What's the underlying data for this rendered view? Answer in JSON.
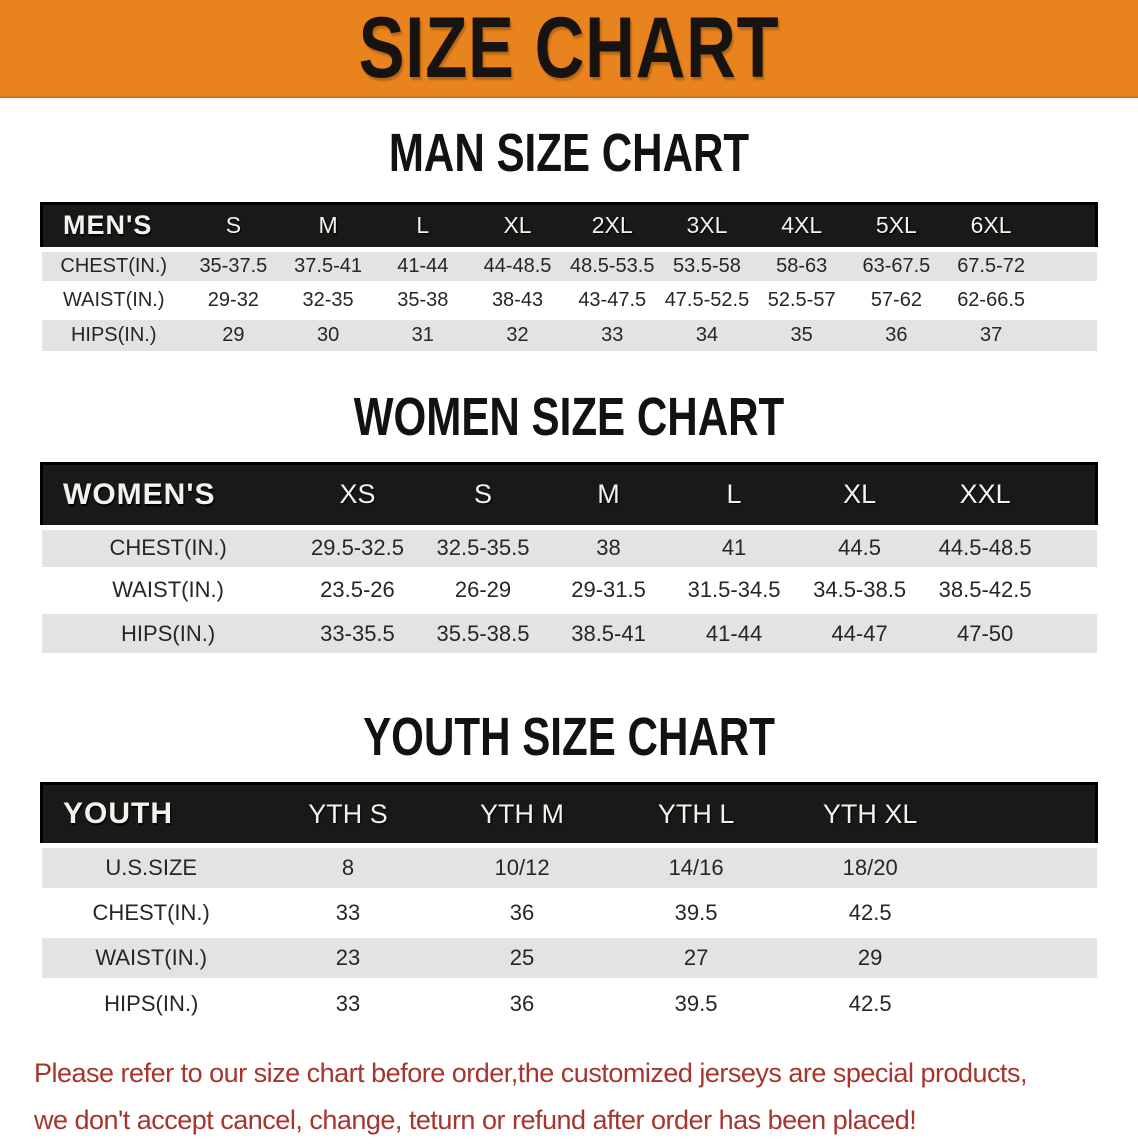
{
  "banner": {
    "title": "SIZE CHART",
    "bg_color": "#E8831E"
  },
  "colors": {
    "header_bar": "#1B1917",
    "row_gray": "#E3E3E3",
    "footer_red": "#A8342E"
  },
  "sections": [
    {
      "heading": "MAN SIZE CHART",
      "table_label": "MEN'S",
      "columns": [
        "S",
        "M",
        "L",
        "XL",
        "2XL",
        "3XL",
        "4XL",
        "5XL",
        "6XL"
      ],
      "rows": [
        {
          "label": "CHEST(IN.)",
          "values": [
            "35-37.5",
            "37.5-41",
            "41-44",
            "44-48.5",
            "48.5-53.5",
            "53.5-58",
            "58-63",
            "63-67.5",
            "67.5-72"
          ]
        },
        {
          "label": "WAIST(IN.)",
          "values": [
            "29-32",
            "32-35",
            "35-38",
            "38-43",
            "43-47.5",
            "47.5-52.5",
            "52.5-57",
            "57-62",
            "62-66.5"
          ]
        },
        {
          "label": "HIPS(IN.)",
          "values": [
            "29",
            "30",
            "31",
            "32",
            "33",
            "34",
            "35",
            "36",
            "37"
          ]
        }
      ]
    },
    {
      "heading": "WOMEN SIZE CHART",
      "table_label": "WOMEN'S",
      "columns": [
        "XS",
        "S",
        "M",
        "L",
        "XL",
        "XXL"
      ],
      "rows": [
        {
          "label": "CHEST(IN.)",
          "values": [
            "29.5-32.5",
            "32.5-35.5",
            "38",
            "41",
            "44.5",
            "44.5-48.5"
          ]
        },
        {
          "label": "WAIST(IN.)",
          "values": [
            "23.5-26",
            "26-29",
            "29-31.5",
            "31.5-34.5",
            "34.5-38.5",
            "38.5-42.5"
          ]
        },
        {
          "label": "HIPS(IN.)",
          "values": [
            "33-35.5",
            "35.5-38.5",
            "38.5-41",
            "41-44",
            "44-47",
            "47-50"
          ]
        }
      ]
    },
    {
      "heading": "YOUTH SIZE CHART",
      "table_label": "YOUTH",
      "columns": [
        "YTH S",
        "YTH M",
        "YTH L",
        "YTH XL"
      ],
      "rows": [
        {
          "label": "U.S.SIZE",
          "values": [
            "8",
            "10/12",
            "14/16",
            "18/20"
          ]
        },
        {
          "label": "CHEST(IN.)",
          "values": [
            "33",
            "36",
            "39.5",
            "42.5"
          ]
        },
        {
          "label": "WAIST(IN.)",
          "values": [
            "23",
            "25",
            "27",
            "29"
          ]
        },
        {
          "label": "HIPS(IN.)",
          "values": [
            "33",
            "36",
            "39.5",
            "42.5"
          ]
        }
      ]
    }
  ],
  "footer": {
    "line1": "Please refer to our size chart before order,the customized jerseys are special products,",
    "line2": "we don't accept cancel, change, teturn or refund after order has been placed!"
  }
}
